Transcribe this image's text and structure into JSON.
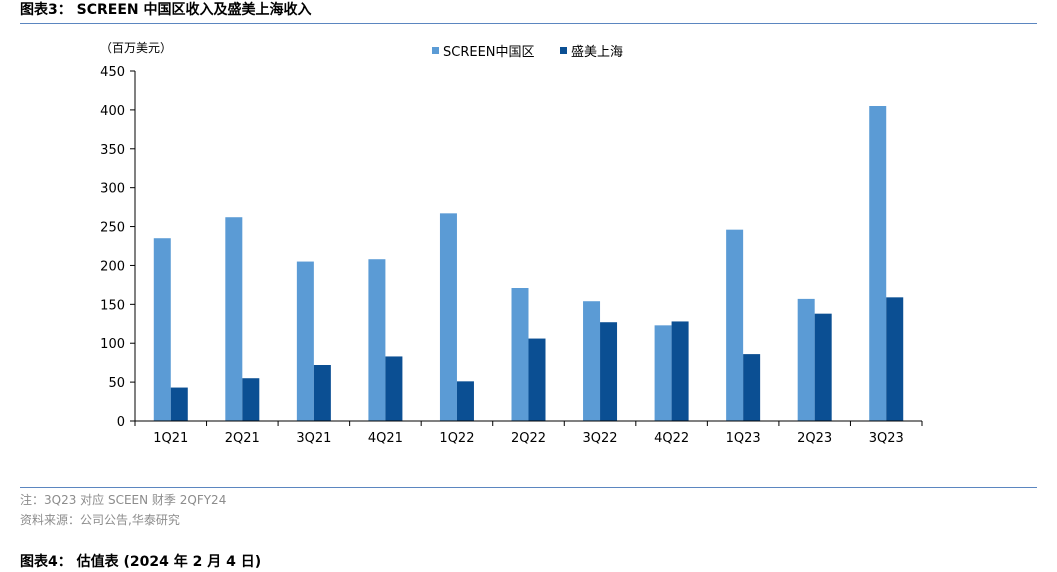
{
  "figure": {
    "title": "图表3： SCREEN 中国区收入及盛美上海收入"
  },
  "notes": {
    "line1": "注：3Q23 对应 SCEEN 财季 2QFY24",
    "line2": "资料来源：公司公告,华泰研究"
  },
  "next_figure": {
    "title": "图表4： 估值表 (2024 年 2 月 4 日)"
  },
  "chart_data": {
    "type": "bar",
    "unit_label": "（百万美元）",
    "categories": [
      "1Q21",
      "2Q21",
      "3Q21",
      "4Q21",
      "1Q22",
      "2Q22",
      "3Q22",
      "4Q22",
      "1Q23",
      "2Q23",
      "3Q23"
    ],
    "series": [
      {
        "name": "SCREEN中国区",
        "color": "#5b9bd5",
        "values": [
          235,
          262,
          205,
          208,
          267,
          171,
          154,
          123,
          246,
          157,
          405
        ]
      },
      {
        "name": "盛美上海",
        "color": "#0b4f93",
        "values": [
          43,
          55,
          72,
          83,
          51,
          106,
          127,
          128,
          86,
          138,
          159
        ]
      }
    ],
    "ylim": [
      0,
      450
    ],
    "yticks": [
      "0",
      "50",
      "100",
      "150",
      "200",
      "250",
      "300",
      "350",
      "400",
      "450"
    ],
    "grid": false,
    "legend_position": "top-center"
  }
}
